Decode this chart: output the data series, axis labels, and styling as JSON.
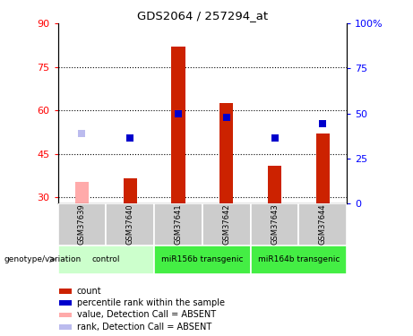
{
  "title": "GDS2064 / 257294_at",
  "samples": [
    "GSM37639",
    "GSM37640",
    "GSM37641",
    "GSM37642",
    "GSM37643",
    "GSM37644"
  ],
  "bar_values": [
    null,
    36.5,
    82.0,
    62.5,
    41.0,
    52.0
  ],
  "bar_absent": [
    35.5,
    null,
    null,
    null,
    null,
    null
  ],
  "rank_values_left": [
    null,
    50.5,
    59.0,
    57.5,
    50.5,
    55.5
  ],
  "rank_absent_left": [
    52.0,
    null,
    null,
    null,
    null,
    null
  ],
  "ylim_left": [
    28,
    90
  ],
  "ylim_right": [
    0,
    100
  ],
  "yticks_left": [
    30,
    45,
    60,
    75,
    90
  ],
  "yticks_right": [
    0,
    25,
    50,
    75,
    100
  ],
  "ytick_labels_right": [
    "0",
    "25",
    "50",
    "75",
    "100%"
  ],
  "bar_color_present": "#cc2200",
  "bar_color_absent": "#ffaaaa",
  "rank_color_present": "#0000cc",
  "rank_color_absent": "#bbbbee",
  "rank_marker_size": 40,
  "sample_bg_color": "#cccccc",
  "group_info": [
    {
      "name": "control",
      "start": 0,
      "end": 2,
      "color": "#ccffcc"
    },
    {
      "name": "miR156b transgenic",
      "start": 2,
      "end": 4,
      "color": "#44ee44"
    },
    {
      "name": "miR164b transgenic",
      "start": 4,
      "end": 6,
      "color": "#44ee44"
    }
  ],
  "legend_items": [
    {
      "label": "count",
      "color": "#cc2200"
    },
    {
      "label": "percentile rank within the sample",
      "color": "#0000cc"
    },
    {
      "label": "value, Detection Call = ABSENT",
      "color": "#ffaaaa"
    },
    {
      "label": "rank, Detection Call = ABSENT",
      "color": "#bbbbee"
    }
  ]
}
